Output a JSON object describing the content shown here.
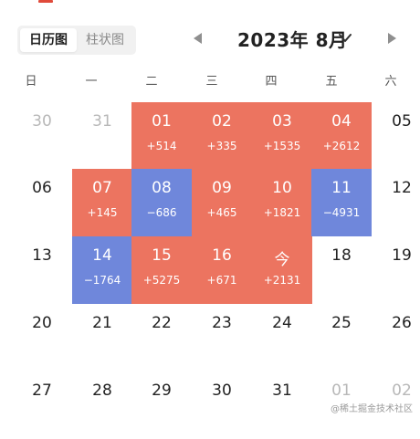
{
  "view_toggle": {
    "calendar_label": "日历图",
    "bar_label": "柱状图"
  },
  "header": {
    "month_label": "2023年 8月"
  },
  "weekdays": [
    "日",
    "一",
    "二",
    "三",
    "四",
    "五",
    "六"
  ],
  "colors": {
    "positive": "#ec7460",
    "negative": "#6f87db",
    "accent": "#e04a3a"
  },
  "weeks": [
    [
      {
        "day": "30",
        "delta": "",
        "state": "muted"
      },
      {
        "day": "31",
        "delta": "",
        "state": "muted"
      },
      {
        "day": "01",
        "delta": "+514",
        "state": "pos"
      },
      {
        "day": "02",
        "delta": "+335",
        "state": "pos"
      },
      {
        "day": "03",
        "delta": "+1535",
        "state": "pos"
      },
      {
        "day": "04",
        "delta": "+2612",
        "state": "pos"
      },
      {
        "day": "05",
        "delta": "",
        "state": "normal"
      }
    ],
    [
      {
        "day": "06",
        "delta": "",
        "state": "normal"
      },
      {
        "day": "07",
        "delta": "+145",
        "state": "pos"
      },
      {
        "day": "08",
        "delta": "−686",
        "state": "neg"
      },
      {
        "day": "09",
        "delta": "+465",
        "state": "pos"
      },
      {
        "day": "10",
        "delta": "+1821",
        "state": "pos"
      },
      {
        "day": "11",
        "delta": "−4931",
        "state": "neg"
      },
      {
        "day": "12",
        "delta": "",
        "state": "normal"
      }
    ],
    [
      {
        "day": "13",
        "delta": "",
        "state": "normal"
      },
      {
        "day": "14",
        "delta": "−1764",
        "state": "neg"
      },
      {
        "day": "15",
        "delta": "+5275",
        "state": "pos"
      },
      {
        "day": "16",
        "delta": "+671",
        "state": "pos"
      },
      {
        "day": "今",
        "delta": "+2131",
        "state": "pos"
      },
      {
        "day": "18",
        "delta": "",
        "state": "normal"
      },
      {
        "day": "19",
        "delta": "",
        "state": "normal"
      }
    ],
    [
      {
        "day": "20",
        "delta": "",
        "state": "normal"
      },
      {
        "day": "21",
        "delta": "",
        "state": "normal"
      },
      {
        "day": "22",
        "delta": "",
        "state": "normal"
      },
      {
        "day": "23",
        "delta": "",
        "state": "normal"
      },
      {
        "day": "24",
        "delta": "",
        "state": "normal"
      },
      {
        "day": "25",
        "delta": "",
        "state": "normal"
      },
      {
        "day": "26",
        "delta": "",
        "state": "normal"
      }
    ],
    [
      {
        "day": "27",
        "delta": "",
        "state": "normal"
      },
      {
        "day": "28",
        "delta": "",
        "state": "normal"
      },
      {
        "day": "29",
        "delta": "",
        "state": "normal"
      },
      {
        "day": "30",
        "delta": "",
        "state": "normal"
      },
      {
        "day": "31",
        "delta": "",
        "state": "normal"
      },
      {
        "day": "01",
        "delta": "",
        "state": "muted"
      },
      {
        "day": "02",
        "delta": "",
        "state": "muted"
      }
    ]
  ],
  "watermark": "@稀土掘金技术社区"
}
